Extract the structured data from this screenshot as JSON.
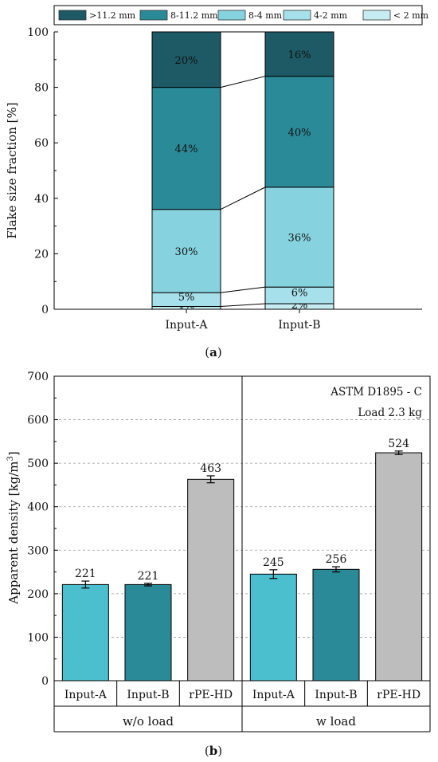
{
  "chart_data": [
    {
      "panel_label": "(a)",
      "type": "stacked-bar",
      "categories": [
        "Input-A",
        "Input-B"
      ],
      "series": [
        {
          "name": "< 2 mm",
          "values": [
            1,
            2
          ],
          "labels": [
            "1%",
            "2%"
          ],
          "color": "#c6ecf1"
        },
        {
          "name": "4-2 mm",
          "values": [
            5,
            6
          ],
          "labels": [
            "5%",
            "6%"
          ],
          "color": "#a6e0ea"
        },
        {
          "name": "8-4 mm",
          "values": [
            30,
            36
          ],
          "labels": [
            "30%",
            "36%"
          ],
          "color": "#86d3df"
        },
        {
          "name": "8-11.2 mm",
          "values": [
            44,
            40
          ],
          "labels": [
            "44%",
            "40%"
          ],
          "color": "#2b8a98"
        },
        {
          "name": ">11.2 mm",
          "values": [
            20,
            16
          ],
          "labels": [
            "20%",
            "16%"
          ],
          "color": "#1d5a65"
        }
      ],
      "legend_order": [
        ">11.2 mm",
        "8-11.2 mm",
        "8-4 mm",
        "4-2 mm",
        "< 2 mm"
      ],
      "ylabel": "Flake size fraction [%]",
      "ylim": [
        0,
        100
      ],
      "yticks": [
        "0",
        "20",
        "40",
        "60",
        "80",
        "100"
      ],
      "legend_position": "top",
      "grid": false
    },
    {
      "panel_label": "(b)",
      "type": "bar",
      "groups": [
        {
          "name": "w/o load",
          "categories": [
            "Input-A",
            "Input-B",
            "rPE-HD"
          ],
          "values": [
            221,
            221,
            463
          ],
          "errors": [
            8,
            3,
            8
          ],
          "labels": [
            "221",
            "221",
            "463"
          ]
        },
        {
          "name": "w load",
          "categories": [
            "Input-A",
            "Input-B",
            "rPE-HD"
          ],
          "values": [
            245,
            256,
            524
          ],
          "errors": [
            10,
            6,
            4
          ],
          "labels": [
            "245",
            "256",
            "524"
          ]
        }
      ],
      "bar_colors": [
        "#4cbfcf",
        "#2b8a98",
        "#bdbdbd"
      ],
      "ylabel_prefix": "Apparent density [kg/m",
      "ylabel_sup": "3",
      "ylabel_suffix": "]",
      "ylim": [
        0,
        700
      ],
      "yticks": [
        "0",
        "100",
        "200",
        "300",
        "400",
        "500",
        "600",
        "700"
      ],
      "annotations": [
        "ASTM D1895 - C",
        "Load 2.3 kg"
      ],
      "grid": true
    }
  ]
}
